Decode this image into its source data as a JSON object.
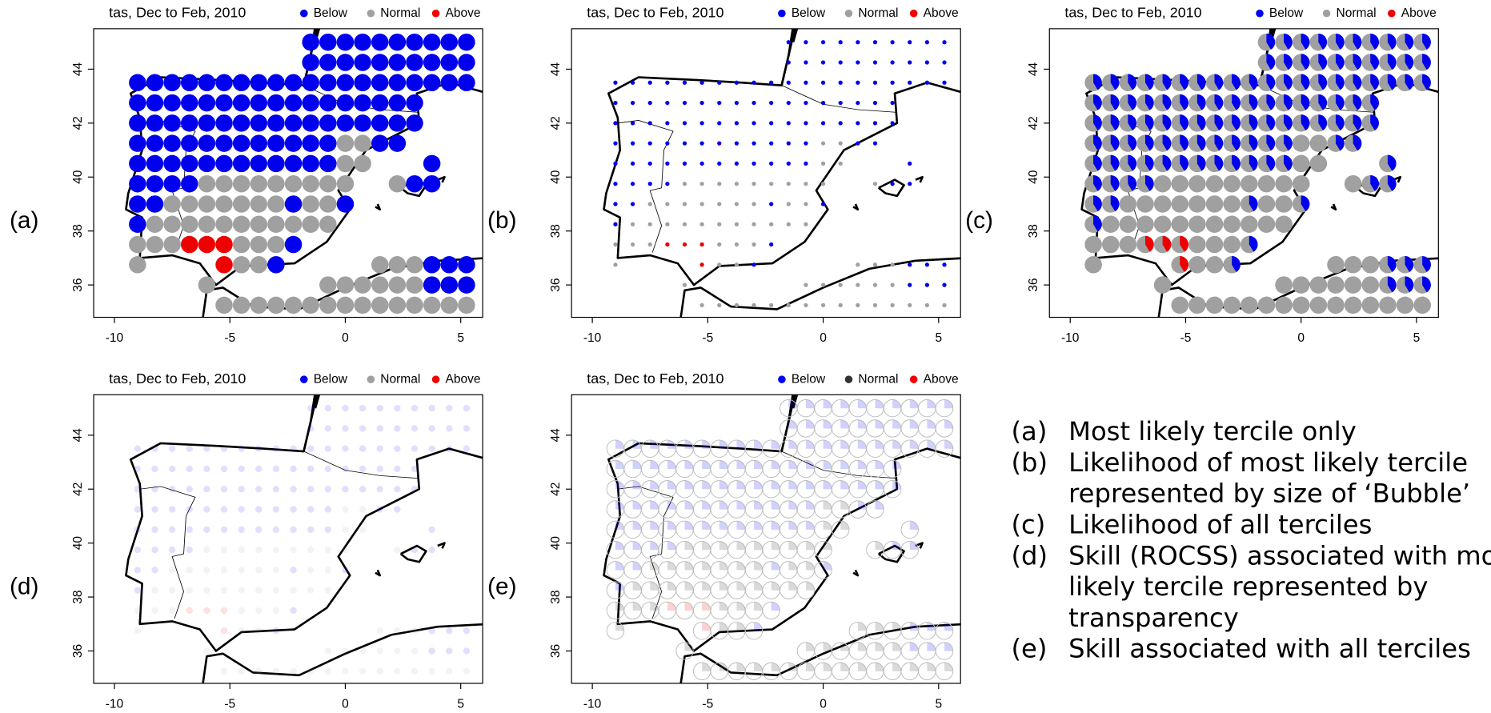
{
  "chart_data": [
    {
      "type": "dots",
      "panel_label": "(a)",
      "title": "tas, Dec to Feb, 2010",
      "series": [
        {
          "name": "Below",
          "color": "#0000ee"
        },
        {
          "name": "Normal",
          "color": "#a0a0a0"
        },
        {
          "name": "Above",
          "color": "#ee0000"
        }
      ],
      "xlim": [
        -10.9,
        5.95
      ],
      "ylim": [
        34.8,
        45.5
      ],
      "xticks": [
        -10,
        -5,
        0,
        5
      ],
      "yticks": [
        36,
        38,
        40,
        42,
        44
      ],
      "lons": [
        -9,
        -8.25,
        -7.5,
        -6.75,
        -6,
        -5.25,
        -4.5,
        -3.75,
        -3,
        -2.25,
        -1.5,
        -0.75,
        0,
        0.75,
        1.5,
        2.25,
        3,
        3.75,
        4.5,
        5.25
      ],
      "lats": [
        45,
        44.25,
        43.5,
        42.75,
        42,
        41.25,
        40.5,
        39.75,
        39,
        38.25,
        37.5,
        36.75,
        36,
        35.25
      ],
      "grid": [
        [
          null,
          null,
          null,
          null,
          null,
          null,
          null,
          null,
          null,
          null,
          0,
          0,
          0,
          0,
          0,
          0,
          0,
          0,
          0,
          0
        ],
        [
          null,
          null,
          null,
          null,
          null,
          null,
          null,
          null,
          null,
          null,
          0,
          0,
          0,
          0,
          0,
          0,
          0,
          0,
          0,
          0
        ],
        [
          0,
          0,
          0,
          0,
          0,
          0,
          0,
          0,
          0,
          0,
          0,
          0,
          0,
          0,
          0,
          0,
          0,
          0,
          0,
          0
        ],
        [
          0,
          0,
          0,
          0,
          0,
          0,
          0,
          0,
          0,
          0,
          0,
          0,
          0,
          0,
          0,
          0,
          0,
          null,
          null,
          null
        ],
        [
          0,
          0,
          0,
          0,
          0,
          0,
          0,
          0,
          0,
          0,
          0,
          0,
          0,
          0,
          0,
          0,
          0,
          null,
          null,
          null
        ],
        [
          0,
          0,
          0,
          0,
          0,
          0,
          0,
          0,
          0,
          0,
          0,
          0,
          1,
          1,
          0,
          0,
          null,
          null,
          null,
          null
        ],
        [
          0,
          0,
          0,
          0,
          0,
          0,
          0,
          0,
          0,
          0,
          0,
          0,
          1,
          1,
          null,
          null,
          null,
          0,
          null,
          null
        ],
        [
          0,
          0,
          0,
          0,
          1,
          1,
          1,
          1,
          1,
          1,
          1,
          1,
          1,
          null,
          null,
          1,
          0,
          0,
          null,
          null
        ],
        [
          0,
          0,
          1,
          1,
          1,
          1,
          1,
          1,
          1,
          0,
          1,
          1,
          0,
          null,
          null,
          null,
          null,
          null,
          null,
          null
        ],
        [
          0,
          1,
          1,
          1,
          1,
          1,
          1,
          1,
          1,
          1,
          1,
          1,
          null,
          null,
          null,
          null,
          null,
          null,
          null,
          null
        ],
        [
          1,
          1,
          1,
          2,
          2,
          2,
          1,
          1,
          1,
          0,
          null,
          null,
          null,
          null,
          null,
          null,
          null,
          null,
          null,
          null
        ],
        [
          1,
          null,
          null,
          null,
          null,
          2,
          1,
          1,
          0,
          null,
          null,
          null,
          null,
          null,
          1,
          1,
          1,
          0,
          0,
          0
        ],
        [
          null,
          null,
          null,
          null,
          1,
          null,
          null,
          null,
          null,
          null,
          null,
          1,
          1,
          1,
          1,
          1,
          1,
          0,
          0,
          0
        ],
        [
          null,
          null,
          null,
          null,
          null,
          1,
          1,
          1,
          1,
          1,
          1,
          1,
          1,
          1,
          1,
          1,
          1,
          1,
          1,
          1
        ]
      ]
    },
    {
      "type": "bubbles",
      "panel_label": "(b)",
      "title": "tas, Dec to Feb, 2010",
      "series": [
        {
          "name": "Below",
          "color": "#0000ee"
        },
        {
          "name": "Normal",
          "color": "#a0a0a0"
        },
        {
          "name": "Above",
          "color": "#ee0000"
        }
      ],
      "xlim": [
        -10.9,
        5.95
      ],
      "ylim": [
        34.8,
        45.5
      ],
      "xticks": [
        -10,
        -5,
        0,
        5
      ],
      "yticks": [
        36,
        38,
        40,
        42,
        44
      ]
    },
    {
      "type": "pies",
      "panel_label": "(c)",
      "title": "tas, Dec to Feb, 2010",
      "series": [
        {
          "name": "Below",
          "color": "#0000ee"
        },
        {
          "name": "Normal",
          "color": "#a0a0a0"
        },
        {
          "name": "Above",
          "color": "#ee0000"
        }
      ],
      "xlim": [
        -10.9,
        5.95
      ],
      "ylim": [
        34.8,
        45.5
      ],
      "xticks": [
        -10,
        -5,
        0,
        5
      ],
      "yticks": [
        36,
        38,
        40,
        42,
        44
      ]
    },
    {
      "type": "transparency",
      "panel_label": "(d)",
      "title": "tas, Dec to Feb, 2010",
      "series": [
        {
          "name": "Below",
          "color": "#0000ee"
        },
        {
          "name": "Normal",
          "color": "#a0a0a0"
        },
        {
          "name": "Above",
          "color": "#ee0000"
        }
      ],
      "xlim": [
        -10.9,
        5.95
      ],
      "ylim": [
        34.8,
        45.5
      ],
      "xticks": [
        -10,
        -5,
        0,
        5
      ],
      "yticks": [
        36,
        38,
        40,
        42,
        44
      ]
    },
    {
      "type": "skillpies",
      "panel_label": "(e)",
      "title": "tas, Dec to Feb, 2010",
      "series": [
        {
          "name": "Below",
          "color": "#0000ee"
        },
        {
          "name": "Normal",
          "color": "#333333"
        },
        {
          "name": "Above",
          "color": "#ee0000"
        }
      ],
      "xlim": [
        -10.9,
        5.95
      ],
      "ylim": [
        34.8,
        45.5
      ],
      "xticks": [
        -10,
        -5,
        0,
        5
      ],
      "yticks": [
        36,
        38,
        40,
        42,
        44
      ]
    }
  ],
  "caption": [
    {
      "label": "(a)",
      "lines": [
        "Most likely tercile only"
      ]
    },
    {
      "label": "(b)",
      "lines": [
        "Likelihood of most likely tercile",
        "represented by size of ‘Bubble’"
      ]
    },
    {
      "label": "(c)",
      "lines": [
        "Likelihood of all terciles"
      ]
    },
    {
      "label": "(d)",
      "lines": [
        "Skill (ROCSS) associated with most",
        "likely tercile represented by",
        "transparency"
      ]
    },
    {
      "label": "(e)",
      "lines": [
        "Skill associated with all terciles"
      ]
    }
  ]
}
